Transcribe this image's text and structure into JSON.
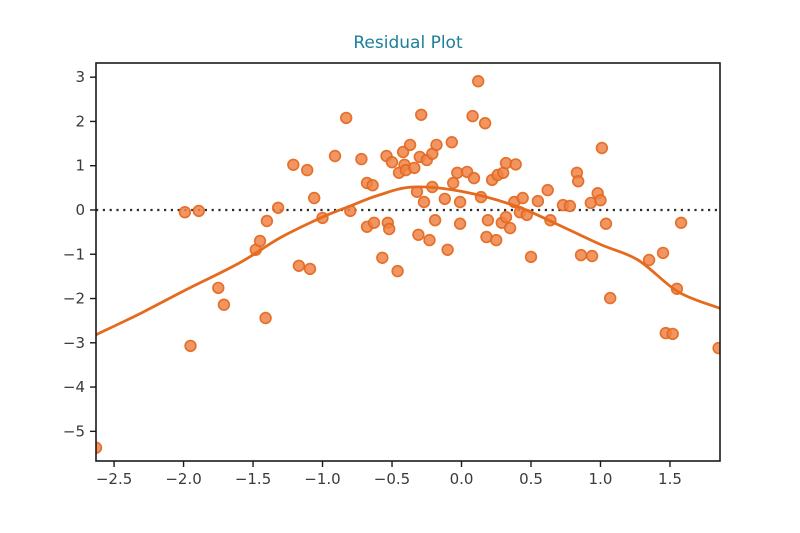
{
  "figure": {
    "title": "Residual Plot",
    "title_color": "#1b7f99",
    "background": "#ffffff"
  },
  "chart_data": {
    "type": "scatter",
    "title": "Residual Plot",
    "xlabel": "",
    "ylabel": "",
    "xlim": [
      -2.63,
      1.86
    ],
    "ylim": [
      -5.67,
      3.32
    ],
    "grid": false,
    "legend": null,
    "x_ticks": [
      -2.5,
      -2.0,
      -1.5,
      -1.0,
      -0.5,
      0.0,
      0.5,
      1.0,
      1.5
    ],
    "x_tick_labels": [
      "−2.5",
      "−2.0",
      "−1.5",
      "−1.0",
      "−0.5",
      "0.0",
      "0.5",
      "1.0",
      "1.5"
    ],
    "y_ticks": [
      3,
      2,
      1,
      0,
      -1,
      -2,
      -3,
      -4,
      -5
    ],
    "y_tick_labels": [
      "3",
      "2",
      "1",
      "0",
      "−1",
      "−2",
      "−3",
      "−4",
      "−5"
    ],
    "zero_line": {
      "y": 0,
      "style": "dotted",
      "color": "#2b2b2b"
    },
    "axes_color": "#1a1a1a",
    "series": [
      {
        "name": "residual-points",
        "type": "scatter",
        "color": "#ef8347",
        "edge_color": "#e2661c",
        "marker_radius": 5.4,
        "points": [
          [
            -2.63,
            -5.37
          ],
          [
            -1.99,
            -0.05
          ],
          [
            -1.95,
            -3.07
          ],
          [
            -1.89,
            -0.02
          ],
          [
            -1.75,
            -1.76
          ],
          [
            -1.71,
            -2.14
          ],
          [
            -1.48,
            -0.9
          ],
          [
            -1.45,
            -0.7
          ],
          [
            -1.41,
            -2.44
          ],
          [
            -1.4,
            -0.25
          ],
          [
            -1.32,
            0.05
          ],
          [
            -1.21,
            1.02
          ],
          [
            -1.17,
            -1.26
          ],
          [
            -1.11,
            0.9
          ],
          [
            -1.09,
            -1.33
          ],
          [
            -1.06,
            0.27
          ],
          [
            -1.0,
            -0.18
          ],
          [
            -0.91,
            1.22
          ],
          [
            -0.83,
            2.08
          ],
          [
            -0.8,
            -0.02
          ],
          [
            -0.72,
            1.15
          ],
          [
            -0.68,
            0.61
          ],
          [
            -0.68,
            -0.38
          ],
          [
            -0.64,
            0.56
          ],
          [
            -0.63,
            -0.29
          ],
          [
            -0.57,
            -1.08
          ],
          [
            -0.54,
            1.22
          ],
          [
            -0.53,
            -0.29
          ],
          [
            -0.52,
            -0.43
          ],
          [
            -0.5,
            1.08
          ],
          [
            -0.46,
            -1.38
          ],
          [
            -0.45,
            0.84
          ],
          [
            -0.42,
            1.31
          ],
          [
            -0.41,
            1.02
          ],
          [
            -0.4,
            0.9
          ],
          [
            -0.37,
            1.47
          ],
          [
            -0.34,
            0.95
          ],
          [
            -0.32,
            0.41
          ],
          [
            -0.31,
            -0.56
          ],
          [
            -0.3,
            1.2
          ],
          [
            -0.29,
            2.15
          ],
          [
            -0.27,
            0.18
          ],
          [
            -0.25,
            1.13
          ],
          [
            -0.23,
            -0.68
          ],
          [
            -0.21,
            1.27
          ],
          [
            -0.21,
            0.52
          ],
          [
            -0.19,
            -0.23
          ],
          [
            -0.18,
            1.47
          ],
          [
            -0.12,
            0.25
          ],
          [
            -0.1,
            -0.9
          ],
          [
            -0.07,
            1.53
          ],
          [
            -0.06,
            0.61
          ],
          [
            -0.03,
            0.84
          ],
          [
            -0.01,
            0.18
          ],
          [
            -0.01,
            -0.31
          ],
          [
            0.04,
            0.86
          ],
          [
            0.08,
            2.12
          ],
          [
            0.09,
            0.72
          ],
          [
            0.12,
            2.91
          ],
          [
            0.14,
            0.29
          ],
          [
            0.17,
            1.96
          ],
          [
            0.18,
            -0.61
          ],
          [
            0.19,
            -0.23
          ],
          [
            0.22,
            0.68
          ],
          [
            0.25,
            -0.68
          ],
          [
            0.26,
            0.79
          ],
          [
            0.29,
            -0.29
          ],
          [
            0.3,
            0.84
          ],
          [
            0.32,
            1.06
          ],
          [
            0.32,
            -0.16
          ],
          [
            0.35,
            -0.41
          ],
          [
            0.38,
            0.18
          ],
          [
            0.39,
            1.03
          ],
          [
            0.42,
            -0.05
          ],
          [
            0.44,
            0.27
          ],
          [
            0.47,
            -0.11
          ],
          [
            0.5,
            -1.06
          ],
          [
            0.55,
            0.2
          ],
          [
            0.62,
            0.45
          ],
          [
            0.64,
            -0.23
          ],
          [
            0.73,
            0.11
          ],
          [
            0.78,
            0.09
          ],
          [
            0.83,
            0.84
          ],
          [
            0.84,
            0.65
          ],
          [
            0.86,
            -1.02
          ],
          [
            0.93,
            0.16
          ],
          [
            0.94,
            -1.04
          ],
          [
            0.98,
            0.38
          ],
          [
            1.0,
            0.22
          ],
          [
            1.01,
            1.4
          ],
          [
            1.04,
            -0.31
          ],
          [
            1.07,
            -1.99
          ],
          [
            1.35,
            -1.13
          ],
          [
            1.45,
            -0.97
          ],
          [
            1.47,
            -2.78
          ],
          [
            1.52,
            -2.8
          ],
          [
            1.55,
            -1.78
          ],
          [
            1.58,
            -0.29
          ],
          [
            1.85,
            -3.12
          ]
        ]
      },
      {
        "name": "lowess-fit",
        "type": "line",
        "color": "#e56a1e",
        "line_width": 2.8,
        "points": [
          [
            -2.63,
            -2.82
          ],
          [
            -2.3,
            -2.32
          ],
          [
            -2.0,
            -1.83
          ],
          [
            -1.6,
            -1.2
          ],
          [
            -1.3,
            -0.62
          ],
          [
            -1.0,
            -0.16
          ],
          [
            -0.8,
            0.09
          ],
          [
            -0.6,
            0.33
          ],
          [
            -0.35,
            0.52
          ],
          [
            0.0,
            0.42
          ],
          [
            0.39,
            0.09
          ],
          [
            0.7,
            -0.34
          ],
          [
            1.0,
            -0.78
          ],
          [
            1.27,
            -1.13
          ],
          [
            1.56,
            -1.85
          ],
          [
            1.86,
            -2.22
          ]
        ]
      }
    ]
  }
}
